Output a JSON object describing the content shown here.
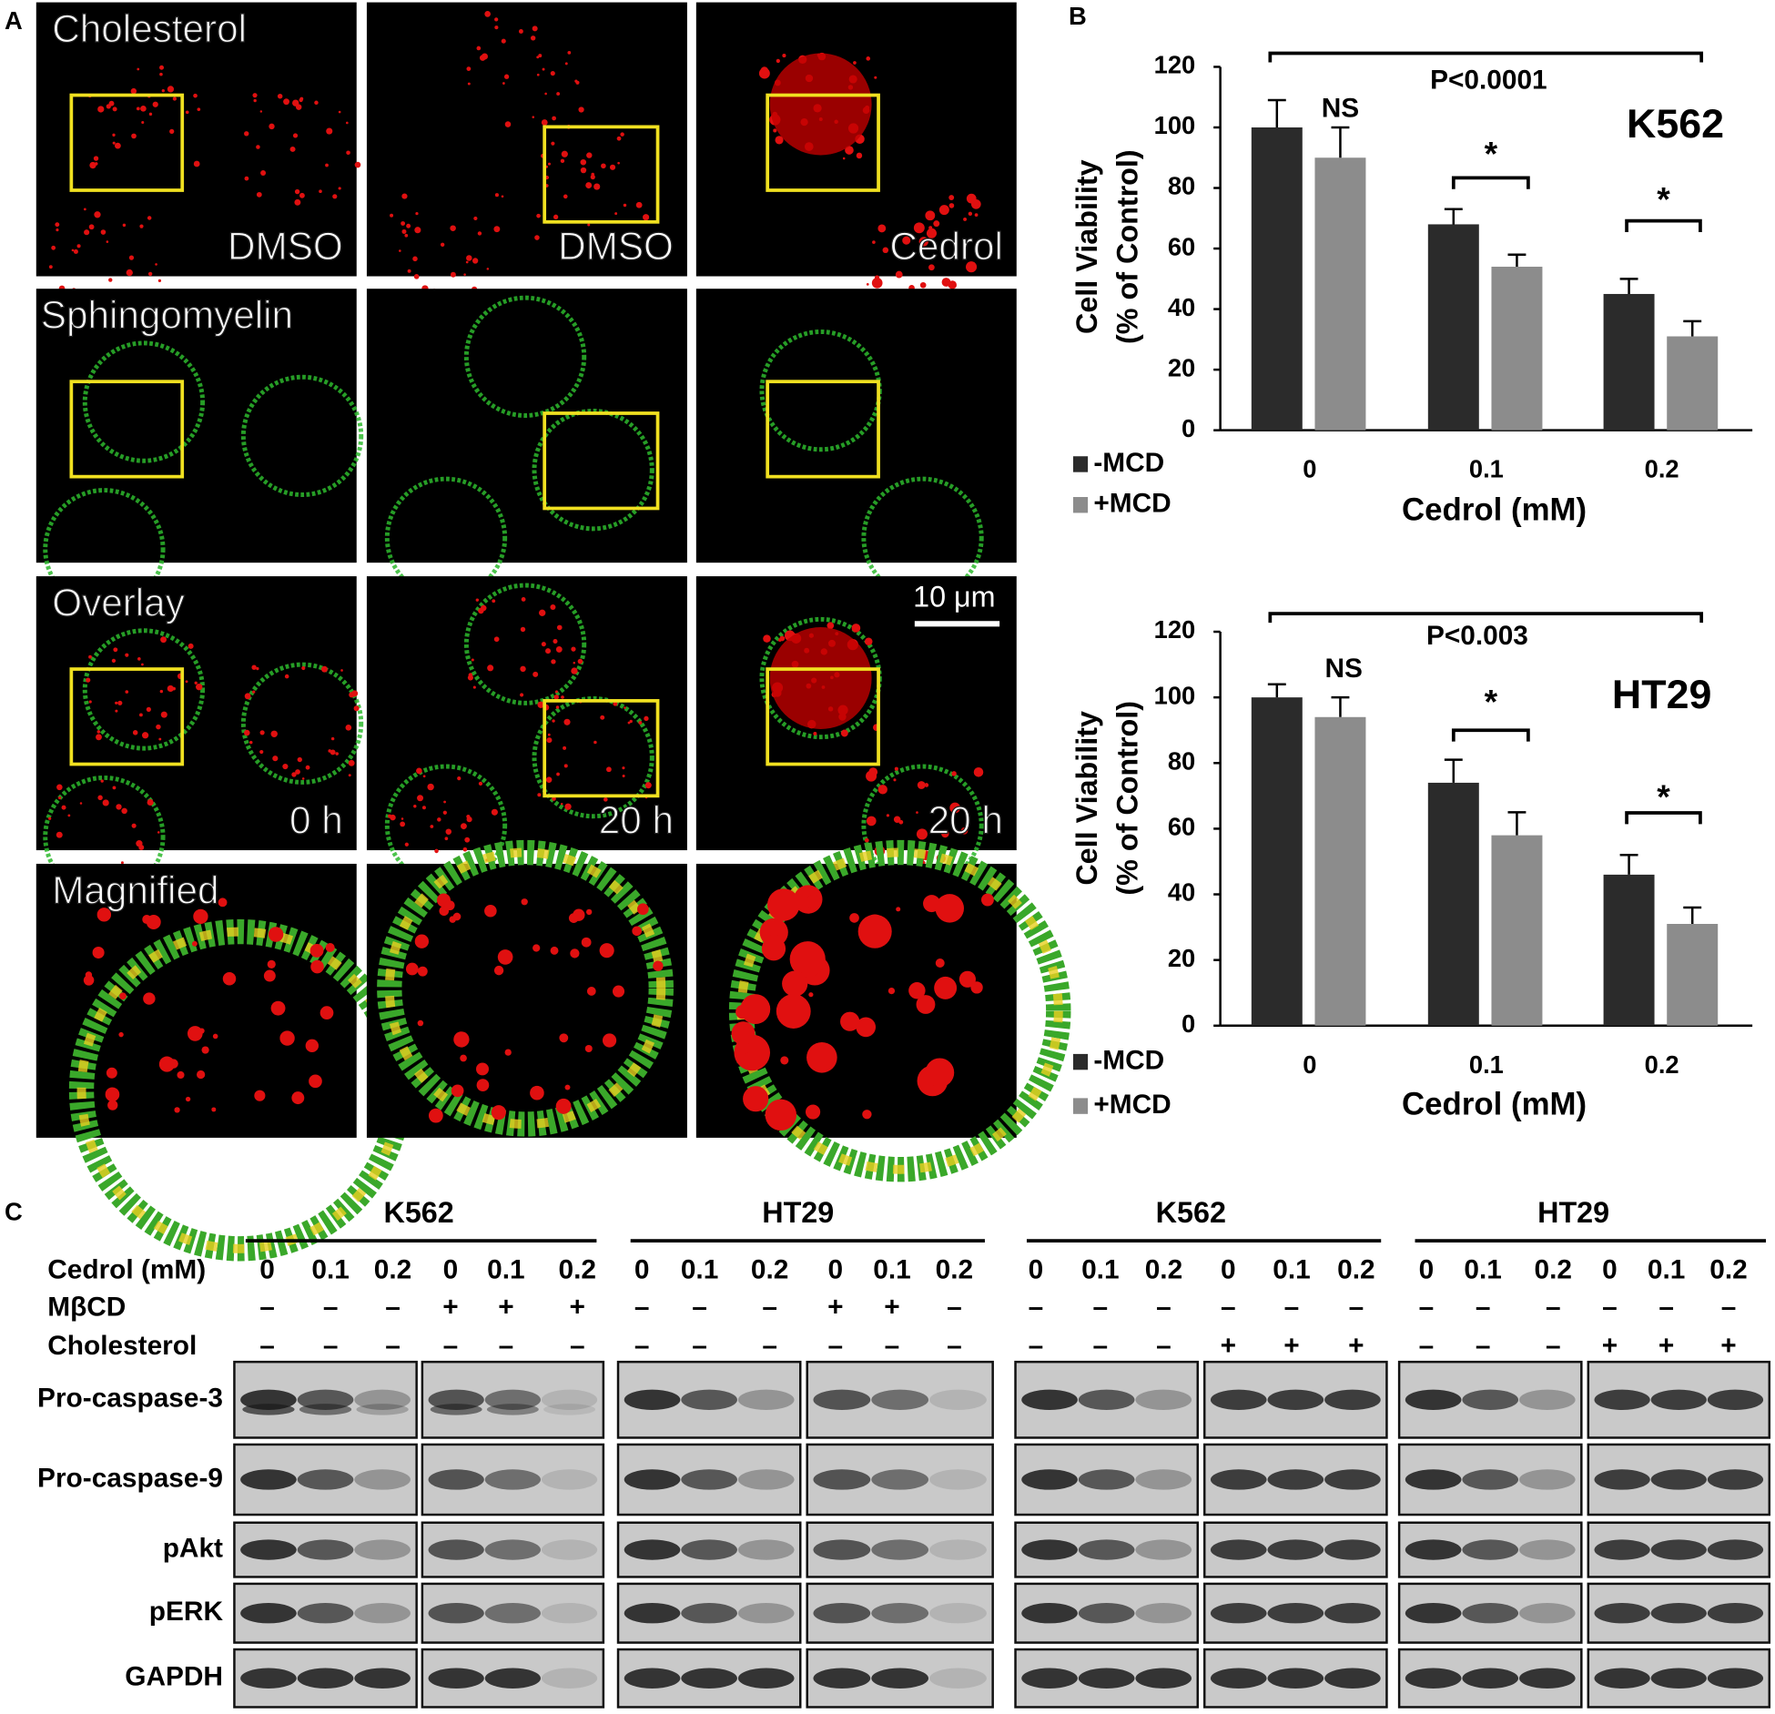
{
  "panel_labels": [
    "A",
    "B",
    "C"
  ],
  "microscopy": {
    "row_labels": [
      "Cholesterol",
      "Sphingomyelin",
      "Overlay",
      "Magnified"
    ],
    "corner_labels": [
      [
        "DMSO",
        "DMSO",
        "Cedrol"
      ],
      [
        "0 h",
        "20 h",
        "20 h"
      ]
    ],
    "scale_bar": "10 μm"
  },
  "chart_data": [
    {
      "type": "bar",
      "title": "K562",
      "xlabel": "Cedrol (mM)",
      "ylabel": [
        "Cell Viability",
        "(% of Control)"
      ],
      "categories": [
        "0",
        "0.1",
        "0.2"
      ],
      "series": [
        {
          "name": "-MCD",
          "color": "#2b2b2b",
          "values": [
            100,
            68,
            45
          ],
          "errors": [
            9,
            5,
            5
          ]
        },
        {
          "name": "+MCD",
          "color": "#8c8c8c",
          "values": [
            90,
            54,
            31
          ],
          "errors": [
            10,
            4,
            5
          ]
        }
      ],
      "ylim": [
        0,
        120
      ],
      "yticks": [
        0,
        20,
        40,
        60,
        80,
        100,
        120
      ],
      "grid": false,
      "annotations": [
        "P<0.0001",
        "NS",
        "*",
        "*"
      ]
    },
    {
      "type": "bar",
      "title": "HT29",
      "xlabel": "Cedrol (mM)",
      "ylabel": [
        "Cell Viability",
        "(% of Control)"
      ],
      "categories": [
        "0",
        "0.1",
        "0.2"
      ],
      "series": [
        {
          "name": "-MCD",
          "color": "#2b2b2b",
          "values": [
            100,
            74,
            46
          ],
          "errors": [
            4,
            7,
            6
          ]
        },
        {
          "name": "+MCD",
          "color": "#8c8c8c",
          "values": [
            94,
            58,
            31
          ],
          "errors": [
            6,
            7,
            5
          ]
        }
      ],
      "ylim": [
        0,
        120
      ],
      "yticks": [
        0,
        20,
        40,
        60,
        80,
        100,
        120
      ],
      "grid": false,
      "annotations": [
        "P<0.003",
        "NS",
        "*",
        "*"
      ]
    }
  ],
  "western_blot": {
    "groups": [
      "K562",
      "HT29",
      "K562",
      "HT29"
    ],
    "condition_labels": [
      "Cedrol (mM)",
      "MβCD",
      "Cholesterol"
    ],
    "lanes": [
      [
        "0",
        "0.1",
        "0.2",
        "0",
        "0.1",
        "0.2",
        "0",
        "0.1",
        "0.2",
        "0",
        "0.1",
        "0.2",
        "0",
        "0.1",
        "0.2",
        "0",
        "0.1",
        "0.2",
        "0",
        "0.1",
        "0.2",
        "0",
        "0.1",
        "0.2"
      ],
      [
        "–",
        "–",
        "–",
        "+",
        "+",
        "+",
        "–",
        "–",
        "–",
        "+",
        "+",
        "–",
        "–",
        "–",
        "–",
        "–",
        "–",
        "–",
        "–",
        "–",
        "–",
        "–",
        "–",
        "–"
      ],
      [
        "–",
        "–",
        "–",
        "–",
        "–",
        "–",
        "–",
        "–",
        "–",
        "–",
        "–",
        "–",
        "–",
        "–",
        "–",
        "+",
        "+",
        "+",
        "–",
        "–",
        "–",
        "+",
        "+",
        "+"
      ]
    ],
    "proteins": [
      "Pro-caspase-3",
      "Pro-caspase-9",
      "pAkt",
      "pERK",
      "GAPDH"
    ]
  }
}
